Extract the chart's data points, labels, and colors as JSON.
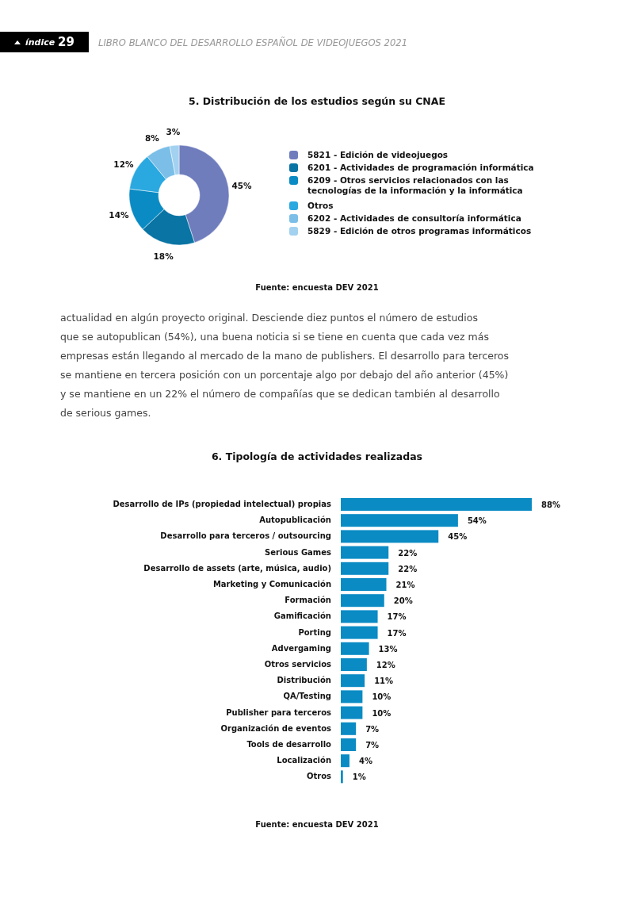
{
  "chart_data": [
    {
      "type": "other",
      "annotations": [
        "índice",
        "29",
        "LIBRO BLANCO DEL DESARROLLO ESPAÑOL DE VIDEOJUEGOS 2021"
      ]
    },
    {
      "type": "donut",
      "title": "5. Distribución de los estudios según su CNAE",
      "categories": [
        "5821 - Edición de videojuegos",
        "6201 - Actividades de programación informática",
        "6209 - Otros servicios relacionados con las tecnologías de la información y la informática",
        "Otros",
        "6202 - Actividades de consultoría informática",
        "5829 - Edición de otros programas informáticos"
      ],
      "values": [
        45,
        18,
        14,
        12,
        8,
        3
      ],
      "colors": [
        "#6f7dbd",
        "#0a74a4",
        "#0a8bc4",
        "#2aa8e0",
        "#7bbfe8",
        "#a3d2f0"
      ],
      "value_labels": [
        "45%",
        "18%",
        "14%",
        "12%",
        "8%",
        "3%"
      ],
      "legend": "right",
      "annotations": [
        "Fuente: encuesta DEV 2021"
      ]
    },
    {
      "type": "other",
      "annotations": [
        "actualidad en algún proyecto original. Desciende diez puntos el número de estudios",
        "que se autopublican (54%), una buena noticia si se tiene en cuenta que cada vez más",
        "empresas están llegando al mercado de la mano de publishers. El desarrollo para terceros",
        "se mantiene en tercera posición con un porcentaje algo por debajo del año anterior (45%)",
        "y se mantiene en un 22% el número de compañías que se dedican también al desarrollo",
        "de serious games."
      ]
    },
    {
      "type": "bar",
      "orientation": "horizontal",
      "title": "6. Tipología de actividades realizadas",
      "categories": [
        "Desarrollo de IPs (propiedad intelectual) propias",
        "Autopublicación",
        "Desarrollo para terceros / outsourcing",
        "Serious Games",
        "Desarrollo de assets (arte, música, audio)",
        "Marketing y Comunicación",
        "Formación",
        "Gamificación",
        "Porting",
        "Advergaming",
        "Otros servicios",
        "Distribución",
        "QA/Testing",
        "Publisher para terceros",
        "Organización de eventos",
        "Tools de desarrollo",
        "Localización",
        "Otros"
      ],
      "values": [
        88,
        54,
        45,
        22,
        22,
        21,
        20,
        17,
        17,
        13,
        12,
        11,
        10,
        10,
        7,
        7,
        4,
        1
      ],
      "value_labels": [
        "88%",
        "54%",
        "45%",
        "22%",
        "22%",
        "21%",
        "20%",
        "17%",
        "17%",
        "13%",
        "12%",
        "11%",
        "10%",
        "10%",
        "7%",
        "7%",
        "4%",
        "1%"
      ],
      "color": "#0a8bc4",
      "annotations": [
        "Fuente: encuesta DEV 2021"
      ]
    }
  ]
}
